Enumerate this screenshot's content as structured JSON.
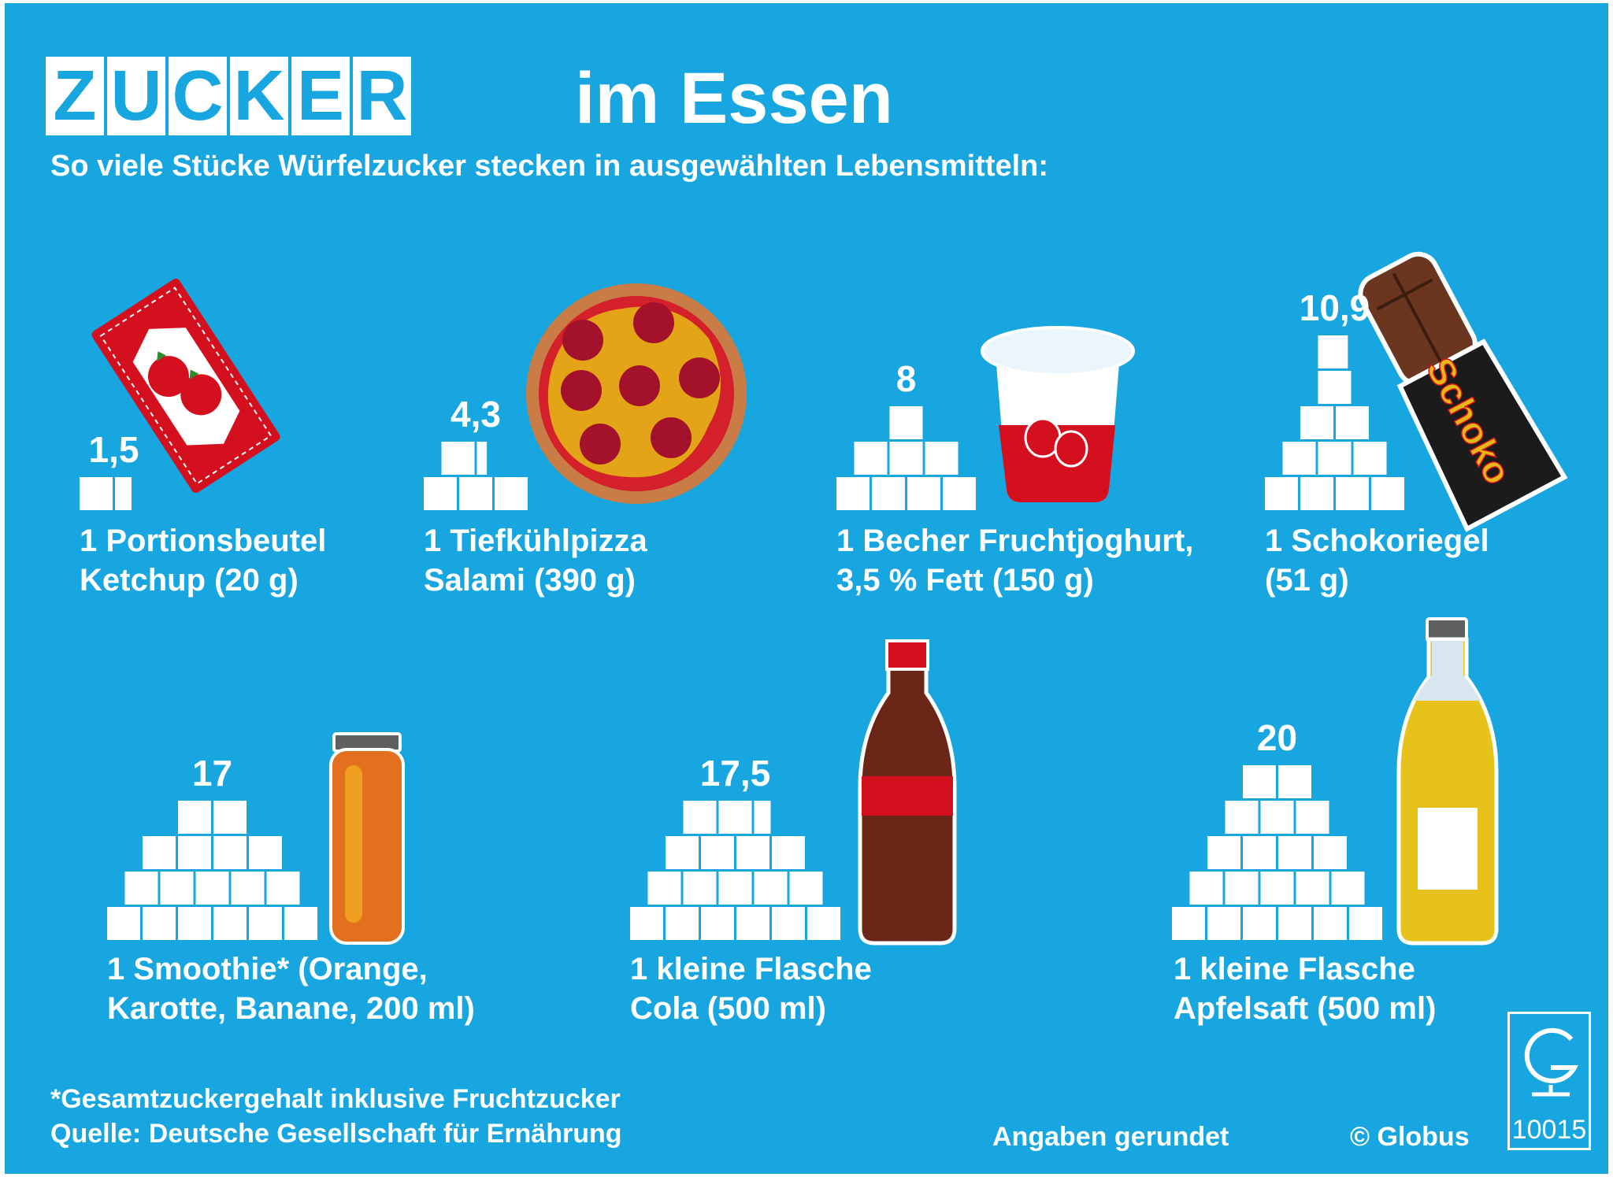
{
  "title": {
    "letters": [
      "Z",
      "U",
      "C",
      "K",
      "E",
      "R"
    ],
    "rest": "im Essen"
  },
  "subtitle": "So viele Stücke Würfelzucker stecken in ausgewählten Lebensmitteln:",
  "chart_data": {
    "type": "bar",
    "unit": "Stücke Würfelzucker",
    "categories": [
      "1 Portionsbeutel\nKetchup (20 g)",
      "1 Tiefkühlpizza\nSalami (390 g)",
      "1 Becher Fruchtjoghurt,\n3,5 % Fett (150 g)",
      "1 Schokoriegel\n(51 g)",
      "1 Smoothie* (Orange,\nKarotte, Banane, 200 ml)",
      "1 kleine Flasche\nCola (500 ml)",
      "1 kleine Flasche\nApfelsaft (500 ml)"
    ],
    "values": [
      1.5,
      4.3,
      8,
      10.9,
      17,
      17.5,
      20
    ],
    "value_labels": [
      "1,5",
      "4,3",
      "8",
      "10,9",
      "17",
      "17,5",
      "20"
    ],
    "products": [
      "ketchup",
      "pizza",
      "yogurt",
      "chocolate-bar",
      "smoothie",
      "cola",
      "apple-juice"
    ],
    "candy_wrapper_text": "Schoko"
  },
  "footnote": "*Gesamtzuckergehalt inklusive Fruchtzucker\nQuelle: Deutsche Gesellschaft für Ernährung",
  "rounding_note": "Angaben gerundet",
  "credit": "© Globus",
  "logo_number": "10015",
  "colors": {
    "background": "#17a6e0",
    "cube": "#ffffff",
    "ketchup": "#d4101e",
    "pizza_crust": "#c97c45",
    "pizza_sauce": "#d4202a",
    "cheese": "#e3a418",
    "salami": "#a3112b",
    "chocolate": "#6b3620",
    "wrapper": "#1b1b1b",
    "smoothie": "#e3701f",
    "cola": "#6b2617",
    "cola_cap": "#d4101e",
    "apple_juice": "#e6c21b"
  }
}
